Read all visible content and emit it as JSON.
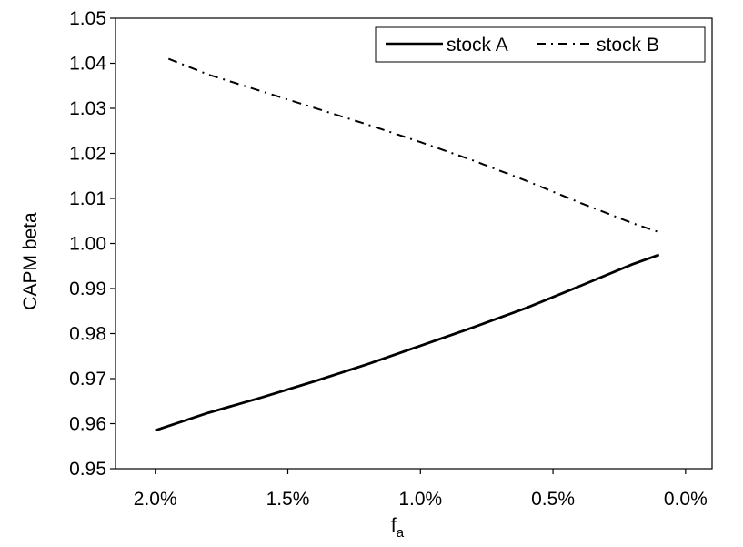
{
  "chart_data": {
    "type": "line",
    "title": "",
    "xlabel_main": "f",
    "xlabel_sub": "a",
    "ylabel": "CAPM beta",
    "x_reversed": true,
    "xlim": [
      2.15,
      -0.1
    ],
    "ylim": [
      0.95,
      1.05
    ],
    "x_ticks": [
      2.0,
      1.5,
      1.0,
      0.5,
      0.0
    ],
    "x_tick_labels": [
      "2.0%",
      "1.5%",
      "1.0%",
      "0.5%",
      "0.0%"
    ],
    "y_ticks": [
      0.95,
      0.96,
      0.97,
      0.98,
      0.99,
      1.0,
      1.01,
      1.02,
      1.03,
      1.04,
      1.05
    ],
    "y_tick_labels": [
      "0.95",
      "0.96",
      "0.97",
      "0.98",
      "0.99",
      "1.00",
      "1.01",
      "1.02",
      "1.03",
      "1.04",
      "1.05"
    ],
    "grid": false,
    "legend_position": "top-right",
    "series": [
      {
        "name": "stock A",
        "style": "solid",
        "color": "#000000",
        "x": [
          2.0,
          1.8,
          1.6,
          1.4,
          1.2,
          1.0,
          0.8,
          0.6,
          0.4,
          0.2,
          0.1
        ],
        "y": [
          0.9585,
          0.9624,
          0.9658,
          0.9694,
          0.9732,
          0.9773,
          0.9814,
          0.9857,
          0.9905,
          0.9954,
          0.9975
        ]
      },
      {
        "name": "stock B",
        "style": "dashdot",
        "color": "#000000",
        "x": [
          1.95,
          1.8,
          1.6,
          1.4,
          1.2,
          1.0,
          0.8,
          0.6,
          0.4,
          0.2,
          0.1
        ],
        "y": [
          1.041,
          1.0375,
          1.0338,
          1.0301,
          1.0264,
          1.0225,
          1.0184,
          1.0139,
          1.0091,
          1.0045,
          1.0025
        ]
      }
    ]
  }
}
